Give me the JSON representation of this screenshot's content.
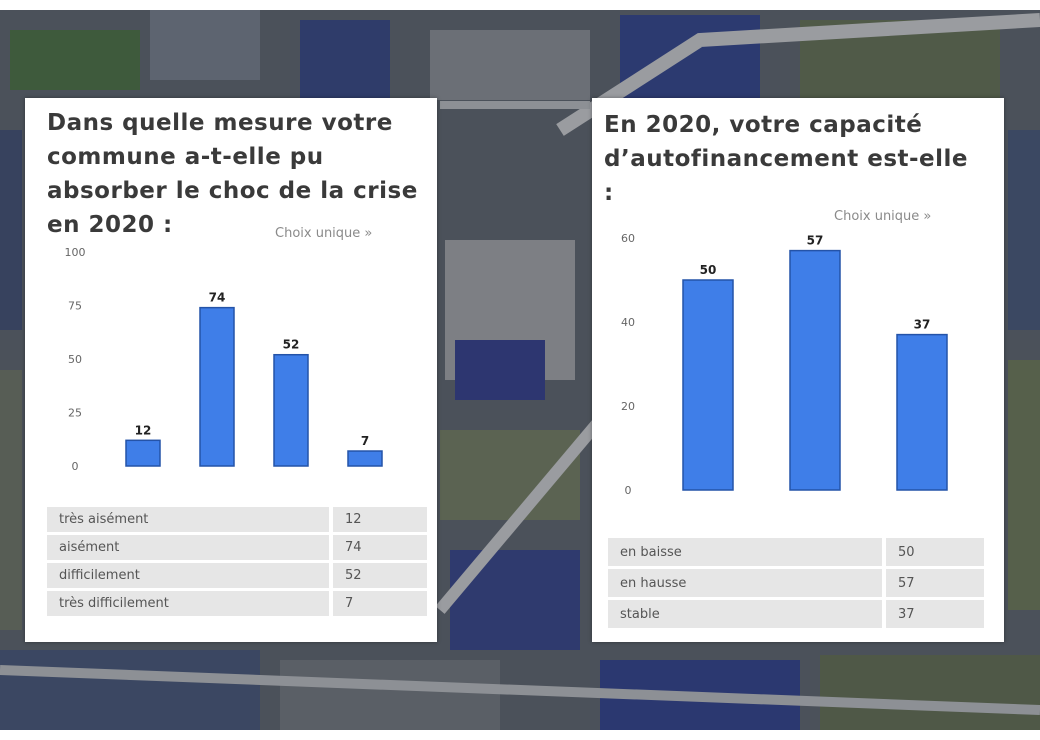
{
  "colors": {
    "bar": "#3f7ee8",
    "bar_stroke": "#2453a8",
    "value_label": "#222222",
    "tick": "#666666"
  },
  "chart_data": [
    {
      "type": "bar",
      "title": "Dans quelle mesure votre commune a-t-elle pu absorber le choc de la crise en 2020 :",
      "note": "Choix unique »",
      "categories": [
        "très aisément",
        "aisément",
        "difficilement",
        "très difficilement"
      ],
      "values": [
        12,
        74,
        52,
        7
      ],
      "yticks": [
        0,
        25,
        50,
        75,
        100
      ],
      "ytick_labels": [
        "0",
        "25",
        "50",
        "75",
        "100"
      ],
      "ylim": [
        0,
        100
      ],
      "xlabel": "",
      "ylabel": "",
      "grid": false,
      "legend": "table below chart"
    },
    {
      "type": "bar",
      "title": "En 2020, votre capacité d’autofinancement est-elle :",
      "note": "Choix unique »",
      "categories": [
        "en baisse",
        "en hausse",
        "stable"
      ],
      "values": [
        50,
        57,
        37
      ],
      "yticks": [
        0,
        20,
        40,
        60
      ],
      "ytick_labels": [
        "0",
        "20",
        "40",
        "60"
      ],
      "ylim": [
        0,
        60
      ],
      "xlabel": "",
      "ylabel": "",
      "grid": false,
      "legend": "table below chart"
    }
  ]
}
